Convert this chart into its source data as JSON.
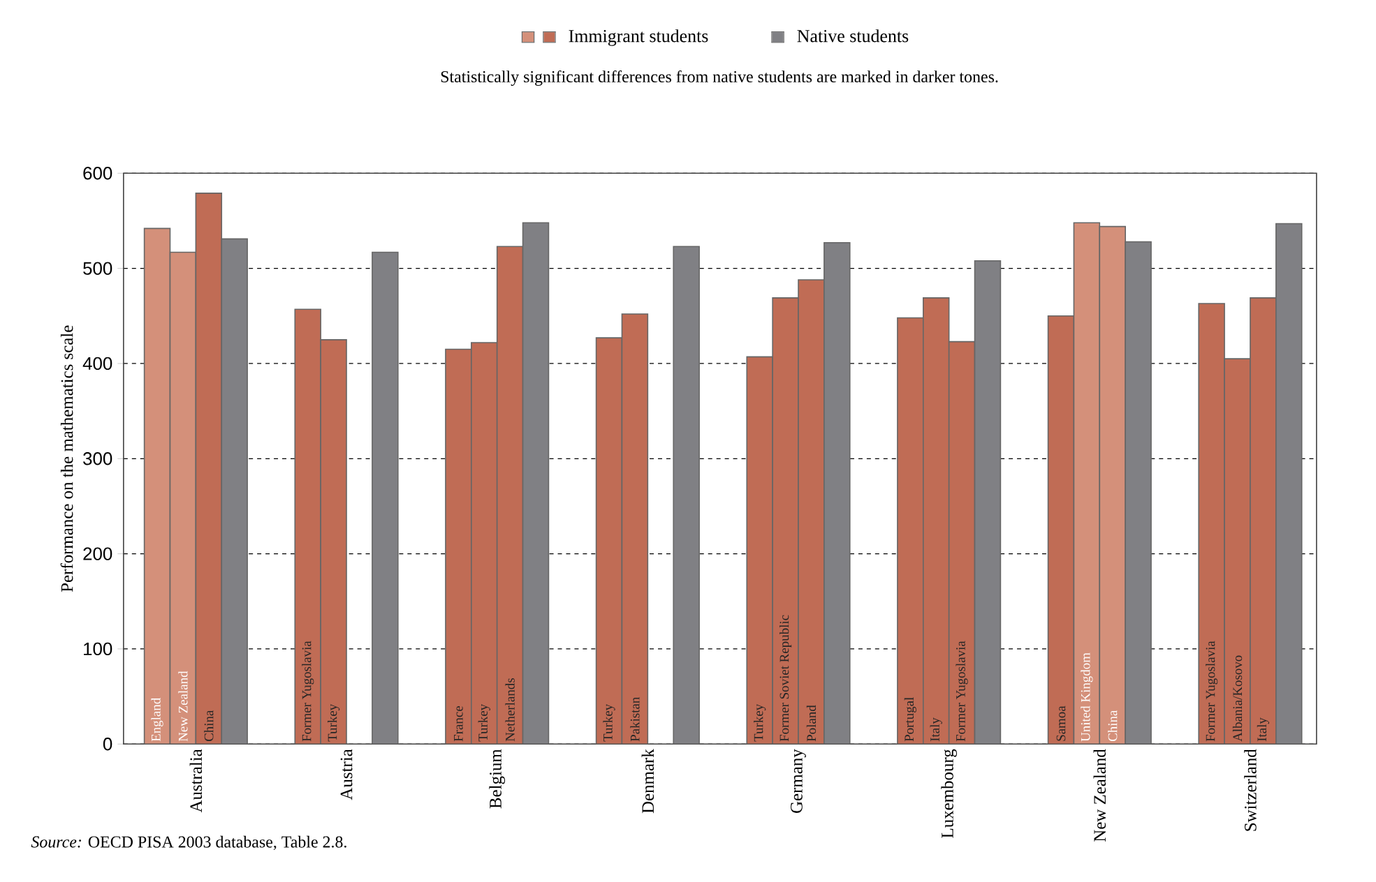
{
  "chart_data": {
    "type": "bar",
    "subtitle": "Statistically significant differences from native students are marked in darker tones.",
    "ylabel": "Performance on the mathematics scale",
    "categories": [
      "Australia",
      "Austria",
      "Belgium",
      "Denmark",
      "Germany",
      "Luxembourg",
      "New Zealand",
      "Switzerland"
    ],
    "series": [
      {
        "name": "Immigrant students",
        "values": [
          542,
          457,
          415,
          427,
          407,
          448,
          450,
          463
        ],
        "colors": [
          "#d4907a",
          "#c06c55",
          "#c06c55",
          "#c06c55",
          "#c06c55",
          "#c06c55",
          "#c06c55",
          "#c06c55"
        ],
        "value_labels": [
          "England",
          "Former Yugoslavia",
          "France",
          "Turkey",
          "Turkey",
          "Portugal",
          "Samoa",
          "Former Yugoslavia"
        ]
      },
      {
        "values": [
          517,
          425,
          422,
          452,
          469,
          469,
          548,
          405
        ],
        "colors": [
          "#d4907a",
          "#c06c55",
          "#c06c55",
          "#c06c55",
          "#c06c55",
          "#c06c55",
          "#d4907a",
          "#c06c55"
        ],
        "value_labels": [
          "New Zealand",
          "Turkey",
          "Turkey",
          "Pakistan",
          "Former Soviet Republic",
          "Italy",
          "United Kingdom",
          "Albania/Kosovo"
        ]
      },
      {
        "values": [
          579,
          null,
          523,
          null,
          488,
          423,
          544,
          469
        ],
        "colors": [
          "#c06c55",
          "#c06c55",
          "#c06c55",
          "#c06c55",
          "#c06c55",
          "#c06c55",
          "#d4907a",
          "#c06c55"
        ],
        "value_labels": [
          "China",
          null,
          "Netherlands",
          null,
          "Poland",
          "Former Yugoslavia",
          "China",
          "Italy"
        ]
      },
      {
        "name": "Native students",
        "color": "#808084",
        "values": [
          531,
          517,
          548,
          523,
          527,
          508,
          528,
          547
        ]
      }
    ],
    "ylim": [
      0,
      600
    ],
    "yticks": [
      0,
      100,
      200,
      300,
      400,
      500,
      600
    ],
    "grid": "y",
    "legend": "top",
    "annotations": [
      "*Source:* OECD PISA 2003 database, Table 2.8."
    ]
  }
}
